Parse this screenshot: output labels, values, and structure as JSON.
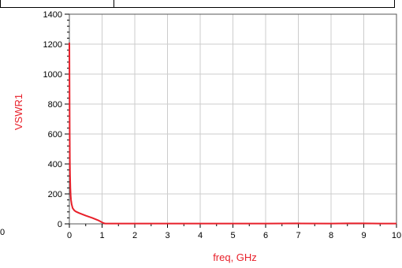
{
  "chart_data": {
    "type": "line",
    "title": "",
    "xlabel": "freq, GHz",
    "ylabel": "VSWR1",
    "xlim": [
      0,
      10
    ],
    "ylim": [
      0,
      1400
    ],
    "x_ticks": [
      "0",
      "1",
      "2",
      "3",
      "4",
      "5",
      "6",
      "7",
      "8",
      "9",
      "10"
    ],
    "y_ticks": [
      "0",
      "200",
      "400",
      "600",
      "800",
      "1000",
      "1200",
      "1400"
    ],
    "grid": true,
    "legend": "none",
    "stray_labels": [
      "0"
    ],
    "colors": {
      "series": "#e8202a",
      "axis_title": "#e8202a",
      "grid": "#cccccc",
      "axis": "#000000"
    },
    "series": [
      {
        "x": [
          0.0,
          0.005,
          0.01,
          0.015,
          0.02,
          0.03,
          0.04,
          0.05,
          0.07,
          0.1,
          0.15,
          0.2,
          0.3,
          0.5,
          0.7,
          0.9,
          1.0,
          1.05,
          1.1,
          1.5,
          2,
          3,
          4,
          5,
          6,
          7,
          8,
          8.5,
          9,
          9.5,
          10
        ],
        "y": [
          1210,
          900,
          600,
          420,
          330,
          240,
          190,
          160,
          130,
          105,
          90,
          82,
          72,
          55,
          40,
          22,
          10,
          5,
          2,
          2,
          2,
          2,
          2,
          2,
          2,
          3,
          2,
          3,
          3,
          2,
          2
        ]
      }
    ]
  }
}
